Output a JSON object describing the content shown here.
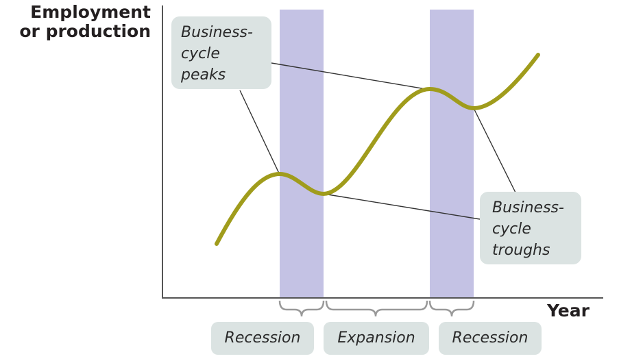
{
  "axes": {
    "ylabel_lines": [
      "Employment",
      "or production"
    ],
    "xlabel": "Year"
  },
  "callouts": {
    "peaks_lines": [
      "Business-",
      "cycle",
      "peaks"
    ],
    "troughs_lines": [
      "Business-",
      "cycle",
      "troughs"
    ]
  },
  "phases": [
    "Recession",
    "Expansion",
    "Recession"
  ],
  "colors": {
    "curve": "#a09c1c",
    "recession_band": "#c4c2e4",
    "callout_box": "#dbe3e2",
    "axis": "#555555",
    "text": "#231f20"
  }
}
